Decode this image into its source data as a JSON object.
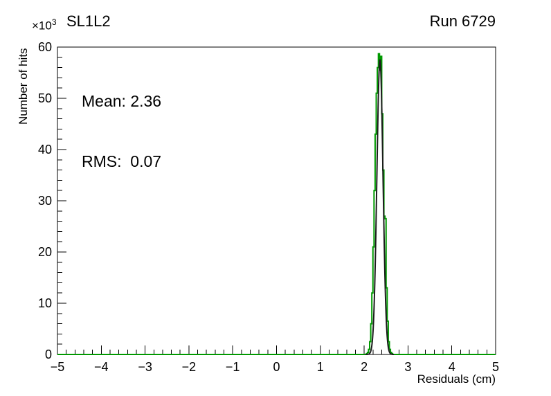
{
  "header": {
    "title": "SL1L2",
    "run_label": "Run 6729"
  },
  "stats": {
    "mean": "Mean: 2.36",
    "rms": "RMS:  0.07"
  },
  "axes": {
    "x": {
      "label": "Residuals (cm)",
      "min": -5,
      "max": 5,
      "major_ticks": [
        -5,
        -4,
        -3,
        -2,
        -1,
        0,
        1,
        2,
        3,
        4,
        5
      ],
      "tick_labels": [
        "−5",
        "−4",
        "−3",
        "−2",
        "−1",
        "0",
        "1",
        "2",
        "3",
        "4",
        "5"
      ],
      "minor_per_major": 5
    },
    "y": {
      "label": "Number of hits",
      "exponent_base": "×10",
      "exponent_power": "3",
      "min": 0,
      "max": 60000,
      "major_ticks": [
        0,
        10000,
        20000,
        30000,
        40000,
        50000,
        60000
      ],
      "tick_labels": [
        "0",
        "10",
        "20",
        "30",
        "40",
        "50",
        "60"
      ],
      "minor_per_major": 5
    }
  },
  "chart_data": {
    "type": "histogram",
    "title": "SL1L2",
    "run": "Run 6729",
    "xlabel": "Residuals (cm)",
    "ylabel": "Number of hits",
    "xlim": [
      -5,
      5
    ],
    "ylim": [
      0,
      60000
    ],
    "y_axis_scale": "×10³",
    "mean": 2.36,
    "rms": 0.07,
    "bin_start": 2.05,
    "bin_width": 0.025,
    "counts": [
      150,
      400,
      1000,
      2500,
      6000,
      12000,
      21000,
      32000,
      43000,
      51000,
      56000,
      58700,
      55500,
      58200,
      47000,
      36000,
      27000,
      26500,
      13000,
      6500,
      2500,
      1000,
      400,
      150
    ],
    "fit": {
      "type": "gaussian",
      "mean": 2.36,
      "sigma": 0.07,
      "amplitude": 57500,
      "range": [
        2.03,
        2.68
      ]
    },
    "colors": {
      "histogram": "#009900",
      "fit": "#1c1c1c",
      "frame": "#000000"
    }
  }
}
